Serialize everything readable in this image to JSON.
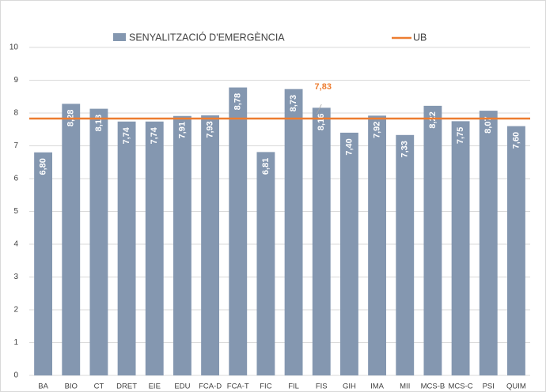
{
  "chart_data": {
    "type": "bar",
    "categories": [
      "BA",
      "BIO",
      "CT",
      "DRET",
      "EIE",
      "EDU",
      "FCA-D",
      "FCA-T",
      "FIC",
      "FIL",
      "FIS",
      "GIH",
      "IMA",
      "MII",
      "MCS-B",
      "MCS-C",
      "PSI",
      "QUIM"
    ],
    "series": [
      {
        "name": "SENYALITZACIÓ D'EMERGÈNCIA",
        "color": "#8497b0",
        "values": [
          6.8,
          8.28,
          8.13,
          7.74,
          7.74,
          7.91,
          7.93,
          8.78,
          6.81,
          8.73,
          8.16,
          7.4,
          7.92,
          7.33,
          8.22,
          7.75,
          8.07,
          7.6
        ],
        "value_labels": [
          "6,80",
          "8,28",
          "8,13",
          "7,74",
          "7,74",
          "7,91",
          "7,93",
          "8,78",
          "6,81",
          "8,73",
          "8,16",
          "7,40",
          "7,92",
          "7,33",
          "8,22",
          "7,75",
          "8,07",
          "7,60"
        ]
      }
    ],
    "reference": {
      "name": "UB",
      "color": "#ed7d31",
      "value": 7.83,
      "value_label": "7,83"
    },
    "ylim": [
      0,
      10
    ],
    "yticks": [
      0,
      1,
      2,
      3,
      4,
      5,
      6,
      7,
      8,
      9,
      10
    ],
    "grid": true
  }
}
